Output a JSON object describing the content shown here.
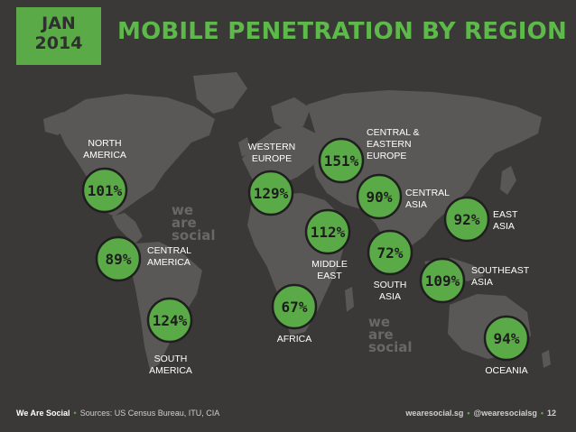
{
  "header": {
    "month": "JAN",
    "year": "2014",
    "title": "MOBILE PENETRATION BY REGION"
  },
  "footer": {
    "brand": "We Are Social",
    "sources_label": "Sources: US Census Bureau, ITU, CIA",
    "site": "wearesocial.sg",
    "handle": "@wearesocialsg",
    "page": "12"
  },
  "watermark": [
    "we",
    "are",
    "social"
  ],
  "colors": {
    "background": "#3b3937",
    "map": "#5a5856",
    "accent": "#5aaa47",
    "circle_stroke": "#1f1f1f",
    "value_text": "#1d1d1d",
    "label_text": "#ffffff"
  },
  "chart_data": {
    "type": "bubble-map",
    "unit": "%",
    "regions": [
      {
        "name": "NORTH\nAMERICA",
        "value": 101
      },
      {
        "name": "CENTRAL\nAMERICA",
        "value": 89
      },
      {
        "name": "SOUTH\nAMERICA",
        "value": 124
      },
      {
        "name": "WESTERN\nEUROPE",
        "value": 129
      },
      {
        "name": "CENTRAL &\nEASTERN\nEUROPE",
        "value": 151
      },
      {
        "name": "CENTRAL\nASIA",
        "value": 90
      },
      {
        "name": "MIDDLE\nEAST",
        "value": 112
      },
      {
        "name": "AFRICA",
        "value": 67
      },
      {
        "name": "SOUTH\nASIA",
        "value": 72
      },
      {
        "name": "EAST\nASIA",
        "value": 92
      },
      {
        "name": "SOUTHEAST\nASIA",
        "value": 109
      },
      {
        "name": "OCEANIA",
        "value": 94
      }
    ]
  }
}
